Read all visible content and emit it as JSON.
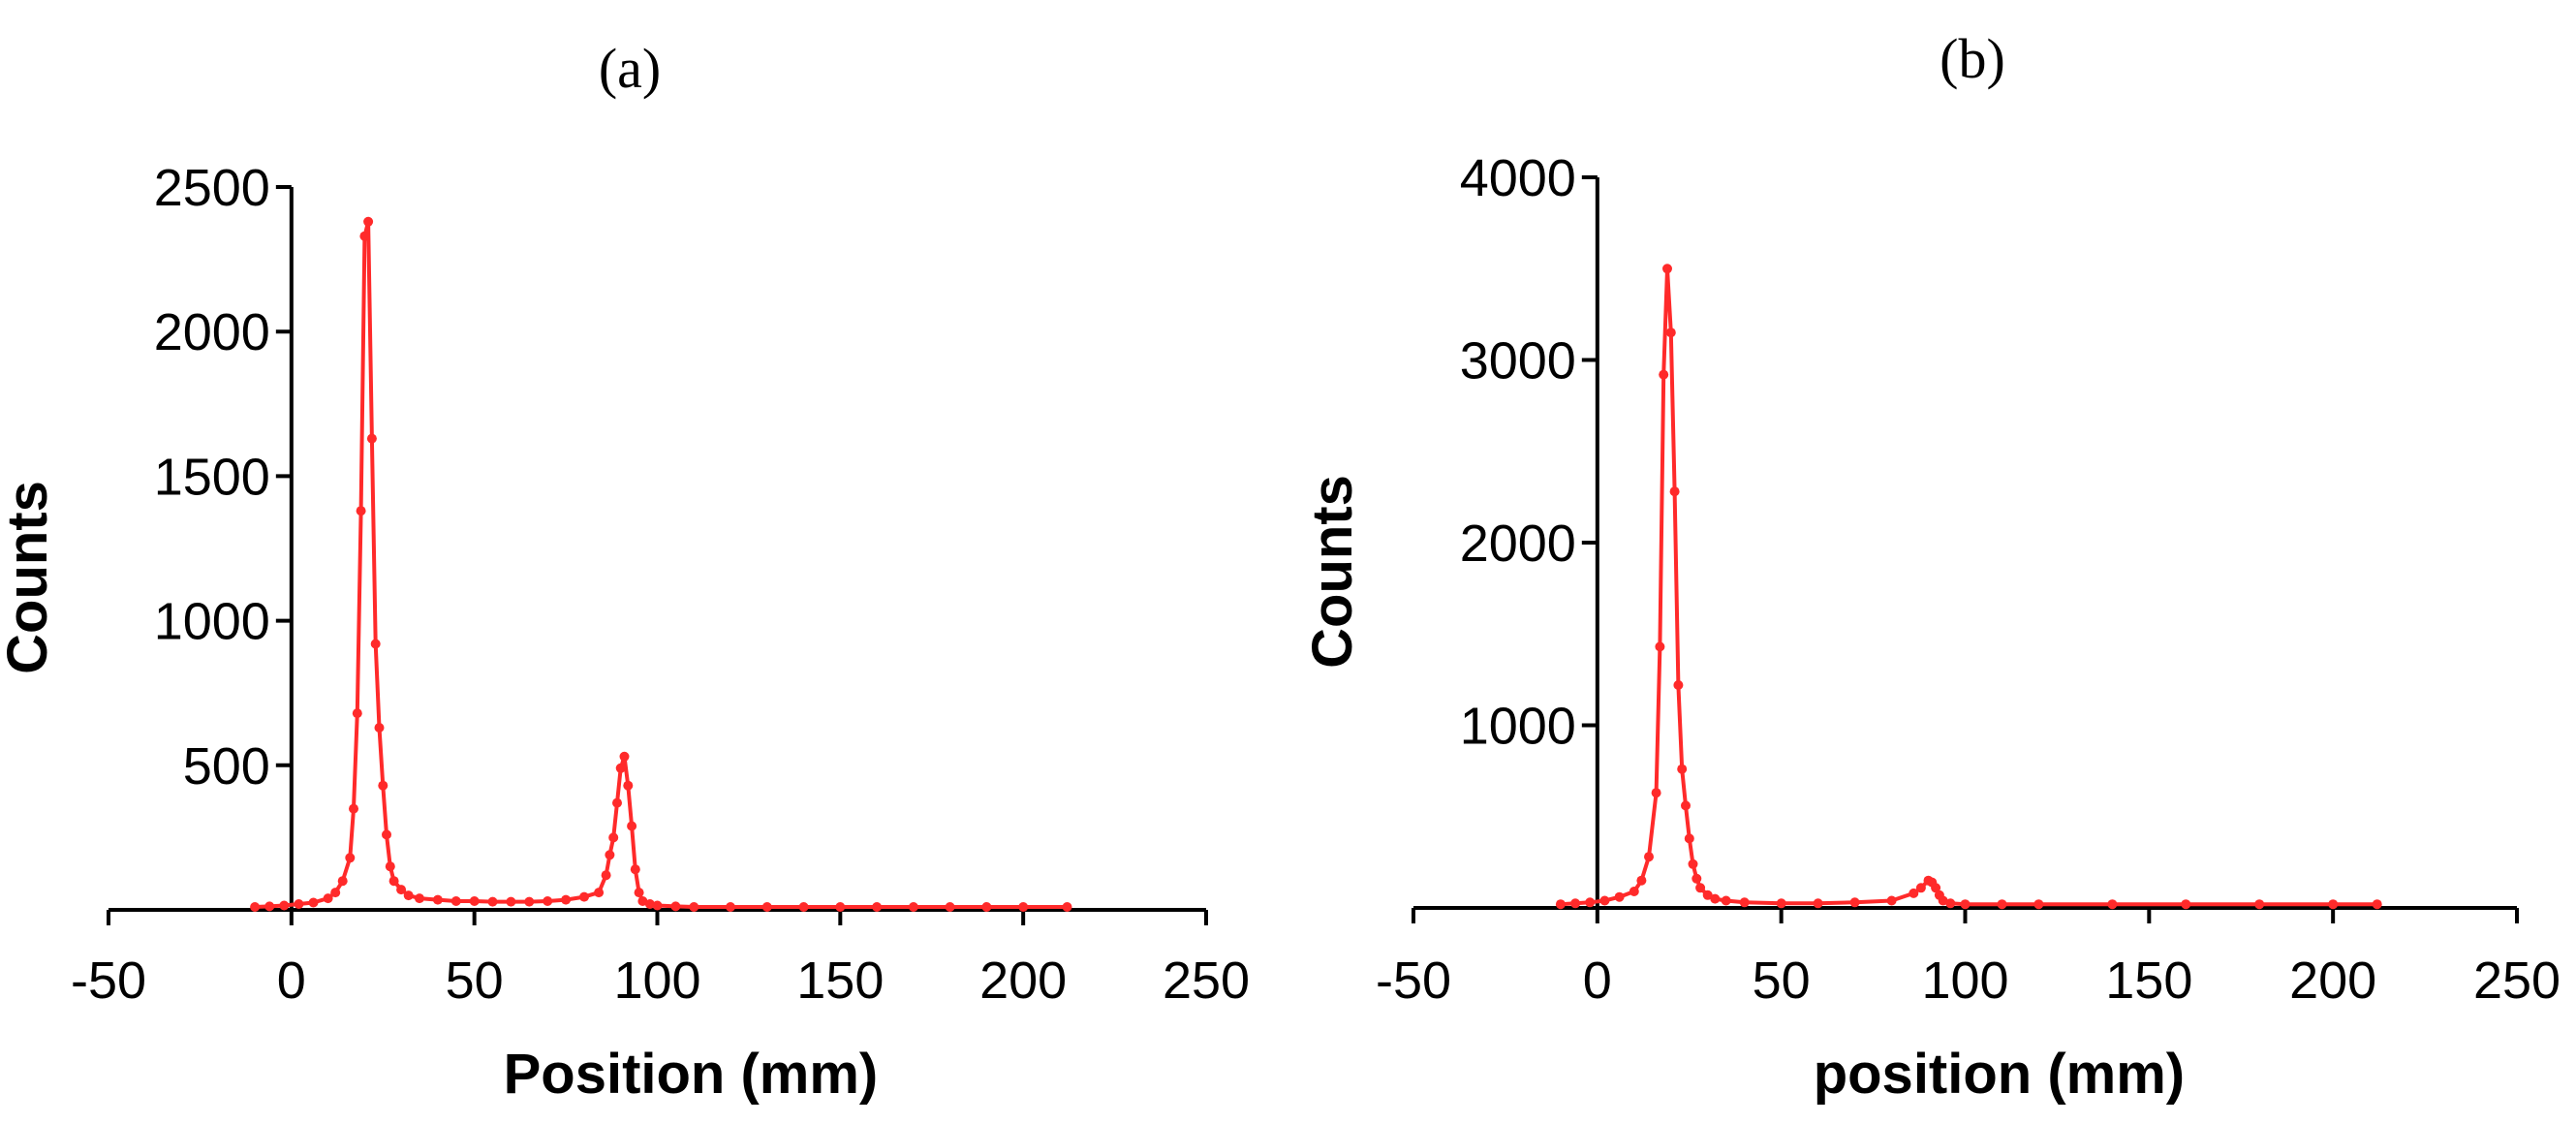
{
  "chart_data": [
    {
      "type": "line",
      "title": "(a)",
      "xlabel": "Position (mm)",
      "ylabel": "Counts",
      "xlim": [
        -50,
        250
      ],
      "ylim": [
        0,
        2500
      ],
      "xticks": [
        -50,
        0,
        50,
        100,
        150,
        200,
        250
      ],
      "yticks": [
        500,
        1000,
        1500,
        2000,
        2500
      ],
      "grid": false,
      "legend": "none",
      "series": [
        {
          "color": "#ff2a2a",
          "marker": "circle",
          "x": [
            -10,
            -6,
            -2,
            2,
            6,
            10,
            12,
            14,
            16,
            17,
            18,
            19,
            20,
            21,
            22,
            23,
            24,
            25,
            26,
            27,
            28,
            30,
            32,
            35,
            40,
            45,
            50,
            55,
            60,
            65,
            70,
            75,
            80,
            84,
            86,
            87,
            88,
            89,
            90,
            91,
            92,
            93,
            94,
            95,
            96,
            98,
            100,
            105,
            110,
            120,
            130,
            140,
            150,
            160,
            170,
            180,
            190,
            200,
            212
          ],
          "y": [
            10,
            12,
            15,
            20,
            25,
            40,
            60,
            100,
            180,
            350,
            680,
            1380,
            2330,
            2380,
            1630,
            920,
            630,
            430,
            260,
            150,
            100,
            70,
            50,
            40,
            35,
            30,
            30,
            28,
            28,
            28,
            30,
            35,
            45,
            60,
            120,
            190,
            250,
            370,
            490,
            530,
            430,
            290,
            140,
            60,
            30,
            20,
            15,
            12,
            10,
            10,
            10,
            10,
            10,
            10,
            10,
            10,
            10,
            10,
            10
          ]
        }
      ]
    },
    {
      "type": "line",
      "title": "(b)",
      "xlabel": "position (mm)",
      "ylabel": "Counts",
      "xlim": [
        -50,
        250
      ],
      "ylim": [
        0,
        4000
      ],
      "xticks": [
        -50,
        0,
        50,
        100,
        150,
        200,
        250
      ],
      "yticks": [
        1000,
        2000,
        3000,
        4000
      ],
      "grid": false,
      "legend": "none",
      "series": [
        {
          "color": "#ff2a2a",
          "marker": "circle",
          "x": [
            -10,
            -6,
            -2,
            2,
            6,
            10,
            12,
            14,
            16,
            17,
            18,
            19,
            20,
            21,
            22,
            23,
            24,
            25,
            26,
            27,
            28,
            30,
            32,
            35,
            40,
            50,
            60,
            70,
            80,
            86,
            88,
            90,
            91,
            92,
            93,
            94,
            96,
            100,
            110,
            120,
            140,
            160,
            180,
            200,
            212
          ],
          "y": [
            20,
            25,
            30,
            40,
            60,
            90,
            150,
            280,
            630,
            1430,
            2920,
            3500,
            3150,
            2280,
            1220,
            760,
            560,
            380,
            240,
            160,
            110,
            70,
            50,
            40,
            30,
            25,
            25,
            30,
            40,
            80,
            110,
            150,
            140,
            110,
            70,
            40,
            25,
            20,
            20,
            20,
            20,
            20,
            20,
            20,
            20
          ]
        }
      ]
    }
  ]
}
